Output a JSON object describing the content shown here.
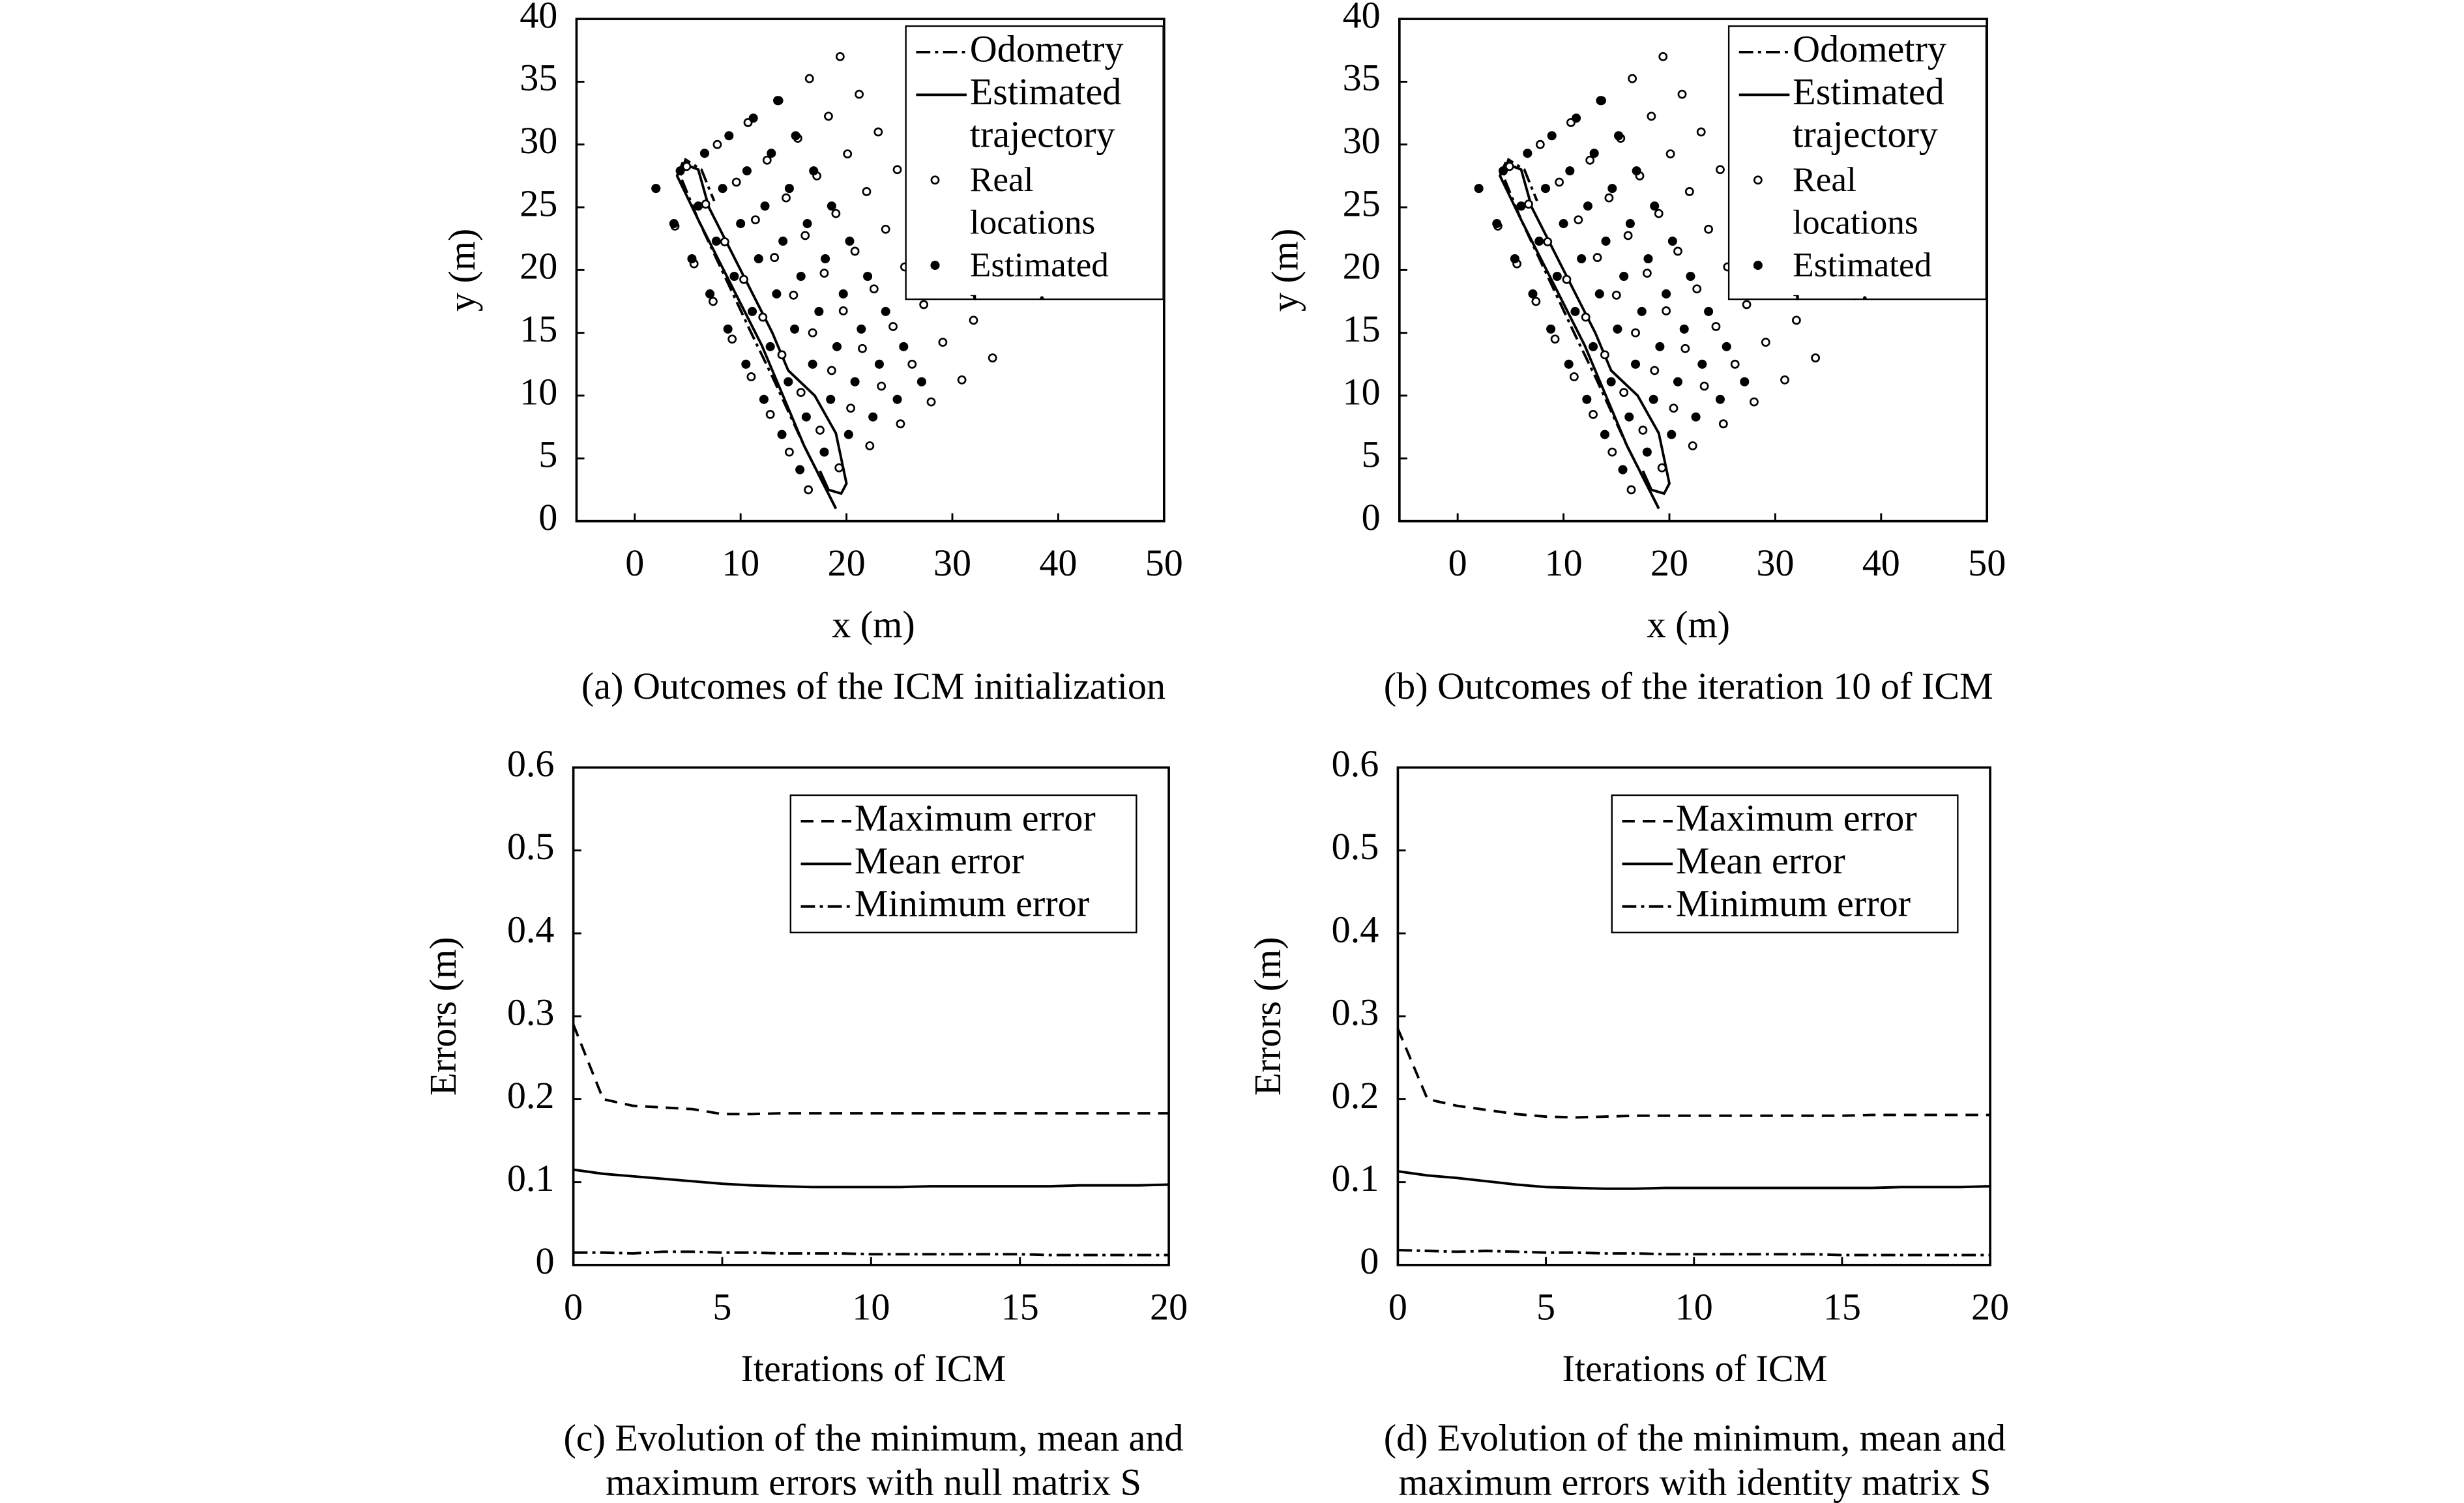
{
  "chart_data": [
    {
      "type": "scatter",
      "caption": [
        "(a) Outcomes of the ICM initialization"
      ],
      "xlabel": "x (m)",
      "ylabel": "y (m)",
      "xlim": [
        -5.5,
        50
      ],
      "xticks": [
        0,
        10,
        20,
        30,
        40,
        50
      ],
      "ylim": [
        0,
        40
      ],
      "yticks": [
        0,
        5,
        10,
        15,
        20,
        25,
        30,
        35,
        40
      ],
      "legend": "upper right",
      "series": [
        {
          "name": "Odometry",
          "mode": "line",
          "style": "dashdot",
          "color": "#000000",
          "x": [
            19,
            16,
            13,
            11,
            8.5,
            6,
            4.3,
            4.8,
            6.3,
            7.5
          ],
          "values": [
            1,
            6,
            11.5,
            15,
            19.5,
            24,
            27.5,
            28.8,
            28,
            25.5
          ]
        },
        {
          "name": "Estimated trajectory",
          "mode": "line",
          "style": "solid",
          "color": "#000000",
          "x": [
            19,
            16,
            13.5,
            12,
            9,
            6,
            4,
            4.5,
            6,
            7,
            10,
            13,
            14.5,
            17,
            19,
            20,
            19.5,
            18.3,
            17.5
          ],
          "values": [
            1,
            6,
            11,
            14,
            19,
            24,
            27.5,
            28.5,
            28,
            25,
            20,
            15,
            12,
            10,
            7,
            3,
            2.2,
            2.5,
            4
          ]
        },
        {
          "name": "Real locations",
          "mode": "markers",
          "marker": "open-circle",
          "color": "#000000",
          "x": [
            2,
            3.8,
            5.6,
            7.4,
            9.2,
            11,
            12.8,
            14.6,
            16.4,
            4.9,
            6.7,
            8.5,
            10.3,
            12.1,
            13.9,
            15.7,
            17.5,
            19.3,
            7.8,
            9.6,
            11.4,
            13.2,
            15,
            16.8,
            18.6,
            20.4,
            22.2,
            10.7,
            12.5,
            14.3,
            16.1,
            17.9,
            19.7,
            21.5,
            23.3,
            25.1,
            13.6,
            15.4,
            17.2,
            19,
            20.8,
            22.6,
            24.4,
            26.2,
            28,
            16.5,
            18.3,
            20.1,
            21.9,
            23.7,
            25.5,
            27.3,
            29.1,
            30.9,
            19.4,
            21.2,
            23,
            24.8,
            26.6,
            28.4,
            30.2,
            32,
            33.8
          ],
          "values": [
            26.5,
            23.5,
            20.5,
            17.5,
            14.5,
            11.5,
            8.5,
            5.5,
            2.5,
            28.25,
            25.25,
            22.25,
            19.25,
            16.25,
            13.25,
            10.25,
            7.25,
            4.25,
            30,
            27,
            24,
            21,
            18,
            15,
            12,
            9,
            6,
            31.75,
            28.75,
            25.75,
            22.75,
            19.75,
            16.75,
            13.75,
            10.75,
            7.75,
            33.5,
            30.5,
            27.5,
            24.5,
            21.5,
            18.5,
            15.5,
            12.5,
            9.5,
            35.25,
            32.25,
            29.25,
            26.25,
            23.25,
            20.25,
            17.25,
            14.25,
            11.25,
            37,
            34,
            31,
            28,
            25,
            22,
            19,
            16,
            13
          ]
        },
        {
          "name": "Estimated locations",
          "mode": "markers",
          "marker": "filled-circle",
          "color": "#000000",
          "x": [
            2,
            3.7,
            5.4,
            7.1,
            8.8,
            10.5,
            12.2,
            13.9,
            15.6,
            4.3,
            6,
            7.7,
            9.4,
            11.1,
            12.8,
            14.5,
            16.2,
            17.9,
            6.6,
            8.3,
            10,
            11.7,
            13.4,
            15.1,
            16.8,
            18.5,
            20.2,
            8.9,
            10.6,
            12.3,
            14,
            15.7,
            17.4,
            19.1,
            20.8,
            22.5,
            11.2,
            12.9,
            14.6,
            16.3,
            18,
            19.7,
            21.4,
            23.1,
            24.8,
            13.5,
            15.2,
            16.9,
            18.6,
            20.3,
            22,
            23.7,
            25.4,
            27.1
          ],
          "values": [
            26.5,
            23.7,
            20.9,
            18.1,
            15.3,
            12.5,
            9.7,
            6.9,
            4.1,
            27.9,
            25.1,
            22.3,
            19.5,
            16.7,
            13.9,
            11.1,
            8.3,
            5.5,
            29.3,
            26.5,
            23.7,
            20.9,
            18.1,
            15.3,
            12.5,
            9.7,
            6.9,
            30.7,
            27.9,
            25.1,
            22.3,
            19.5,
            16.7,
            13.9,
            11.1,
            8.3,
            32.1,
            29.3,
            26.5,
            23.7,
            20.9,
            18.1,
            15.3,
            12.5,
            9.7,
            33.5,
            30.7,
            27.9,
            25.1,
            22.3,
            19.5,
            16.7,
            13.9,
            11.1
          ]
        }
      ]
    },
    {
      "type": "scatter",
      "caption": [
        "(b) Outcomes of the iteration 10 of ICM"
      ],
      "xlabel": "x (m)",
      "ylabel": "y (m)",
      "xlim": [
        -5.5,
        50
      ],
      "xticks": [
        0,
        10,
        20,
        30,
        40,
        50
      ],
      "ylim": [
        0,
        40
      ],
      "yticks": [
        0,
        5,
        10,
        15,
        20,
        25,
        30,
        35,
        40
      ],
      "legend": "upper right",
      "series": [
        {
          "name": "Odometry",
          "mode": "line",
          "style": "dashdot",
          "color": "#000000",
          "x": [
            19,
            16,
            13,
            11,
            8.5,
            6,
            4.3,
            4.8,
            6.3,
            7.5
          ],
          "values": [
            1,
            6,
            11.5,
            15,
            19.5,
            24,
            27.5,
            28.8,
            28,
            25.5
          ]
        },
        {
          "name": "Estimated trajectory",
          "mode": "line",
          "style": "solid",
          "color": "#000000",
          "x": [
            19,
            16,
            13.5,
            12,
            9,
            6,
            4,
            4.5,
            6,
            7,
            10,
            13,
            14.5,
            17,
            19,
            20,
            19.5,
            18.3,
            17.5
          ],
          "values": [
            1,
            6,
            11,
            14,
            19,
            24,
            27.5,
            28.5,
            28,
            25,
            20,
            15,
            12,
            10,
            7,
            3,
            2.2,
            2.5,
            4
          ]
        },
        {
          "name": "Real locations",
          "mode": "markers",
          "marker": "open-circle",
          "color": "#000000",
          "x": [
            2,
            3.8,
            5.6,
            7.4,
            9.2,
            11,
            12.8,
            14.6,
            16.4,
            4.9,
            6.7,
            8.5,
            10.3,
            12.1,
            13.9,
            15.7,
            17.5,
            19.3,
            7.8,
            9.6,
            11.4,
            13.2,
            15,
            16.8,
            18.6,
            20.4,
            22.2,
            10.7,
            12.5,
            14.3,
            16.1,
            17.9,
            19.7,
            21.5,
            23.3,
            25.1,
            13.6,
            15.4,
            17.2,
            19,
            20.8,
            22.6,
            24.4,
            26.2,
            28,
            16.5,
            18.3,
            20.1,
            21.9,
            23.7,
            25.5,
            27.3,
            29.1,
            30.9,
            19.4,
            21.2,
            23,
            24.8,
            26.6,
            28.4,
            30.2,
            32,
            33.8
          ],
          "values": [
            26.5,
            23.5,
            20.5,
            17.5,
            14.5,
            11.5,
            8.5,
            5.5,
            2.5,
            28.25,
            25.25,
            22.25,
            19.25,
            16.25,
            13.25,
            10.25,
            7.25,
            4.25,
            30,
            27,
            24,
            21,
            18,
            15,
            12,
            9,
            6,
            31.75,
            28.75,
            25.75,
            22.75,
            19.75,
            16.75,
            13.75,
            10.75,
            7.75,
            33.5,
            30.5,
            27.5,
            24.5,
            21.5,
            18.5,
            15.5,
            12.5,
            9.5,
            35.25,
            32.25,
            29.25,
            26.25,
            23.25,
            20.25,
            17.25,
            14.25,
            11.25,
            37,
            34,
            31,
            28,
            25,
            22,
            19,
            16,
            13
          ]
        },
        {
          "name": "Estimated locations",
          "mode": "markers",
          "marker": "filled-circle",
          "color": "#000000",
          "x": [
            2,
            3.7,
            5.4,
            7.1,
            8.8,
            10.5,
            12.2,
            13.9,
            15.6,
            4.3,
            6,
            7.7,
            9.4,
            11.1,
            12.8,
            14.5,
            16.2,
            17.9,
            6.6,
            8.3,
            10,
            11.7,
            13.4,
            15.1,
            16.8,
            18.5,
            20.2,
            8.9,
            10.6,
            12.3,
            14,
            15.7,
            17.4,
            19.1,
            20.8,
            22.5,
            11.2,
            12.9,
            14.6,
            16.3,
            18,
            19.7,
            21.4,
            23.1,
            24.8,
            13.5,
            15.2,
            16.9,
            18.6,
            20.3,
            22,
            23.7,
            25.4,
            27.1
          ],
          "values": [
            26.5,
            23.7,
            20.9,
            18.1,
            15.3,
            12.5,
            9.7,
            6.9,
            4.1,
            27.9,
            25.1,
            22.3,
            19.5,
            16.7,
            13.9,
            11.1,
            8.3,
            5.5,
            29.3,
            26.5,
            23.7,
            20.9,
            18.1,
            15.3,
            12.5,
            9.7,
            6.9,
            30.7,
            27.9,
            25.1,
            22.3,
            19.5,
            16.7,
            13.9,
            11.1,
            8.3,
            32.1,
            29.3,
            26.5,
            23.7,
            20.9,
            18.1,
            15.3,
            12.5,
            9.7,
            33.5,
            30.7,
            27.9,
            25.1,
            22.3,
            19.5,
            16.7,
            13.9,
            11.1
          ]
        }
      ]
    },
    {
      "type": "line",
      "caption": [
        "(c) Evolution of the minimum, mean and",
        "maximum errors with null matrix S"
      ],
      "xlabel": "Iterations of ICM",
      "ylabel": "Errors (m)",
      "xlim": [
        0,
        20
      ],
      "xticks": [
        0,
        5,
        10,
        15,
        20
      ],
      "ylim": [
        0,
        0.6
      ],
      "yticks": [
        0,
        0.1,
        0.2,
        0.3,
        0.4,
        0.5,
        0.6
      ],
      "legend": "upper right",
      "x": [
        0,
        1,
        2,
        3,
        4,
        5,
        6,
        7,
        8,
        9,
        10,
        11,
        12,
        13,
        14,
        15,
        16,
        17,
        18,
        19,
        20
      ],
      "series": [
        {
          "name": "Maximum error",
          "style": "dashed",
          "color": "#000000",
          "values": [
            0.29,
            0.2,
            0.192,
            0.19,
            0.188,
            0.182,
            0.182,
            0.183,
            0.183,
            0.183,
            0.183,
            0.183,
            0.183,
            0.183,
            0.183,
            0.183,
            0.183,
            0.183,
            0.183,
            0.183,
            0.183
          ]
        },
        {
          "name": "Mean error",
          "style": "solid",
          "color": "#000000",
          "values": [
            0.115,
            0.11,
            0.107,
            0.104,
            0.101,
            0.098,
            0.096,
            0.095,
            0.094,
            0.094,
            0.094,
            0.094,
            0.095,
            0.095,
            0.095,
            0.095,
            0.095,
            0.096,
            0.096,
            0.096,
            0.097
          ]
        },
        {
          "name": "Minimum error",
          "style": "dashdot",
          "color": "#000000",
          "values": [
            0.015,
            0.015,
            0.014,
            0.016,
            0.016,
            0.015,
            0.015,
            0.014,
            0.014,
            0.014,
            0.013,
            0.013,
            0.013,
            0.013,
            0.013,
            0.013,
            0.012,
            0.012,
            0.012,
            0.012,
            0.012
          ]
        }
      ]
    },
    {
      "type": "line",
      "caption": [
        "(d) Evolution of the minimum, mean and",
        "maximum errors with identity matrix S"
      ],
      "xlabel": "Iterations of ICM",
      "ylabel": "Errors (m)",
      "xlim": [
        0,
        20
      ],
      "xticks": [
        0,
        5,
        10,
        15,
        20
      ],
      "ylim": [
        0,
        0.6
      ],
      "yticks": [
        0,
        0.1,
        0.2,
        0.3,
        0.4,
        0.5,
        0.6
      ],
      "legend": "upper right",
      "x": [
        0,
        1,
        2,
        3,
        4,
        5,
        6,
        7,
        8,
        9,
        10,
        11,
        12,
        13,
        14,
        15,
        16,
        17,
        18,
        19,
        20
      ],
      "series": [
        {
          "name": "Maximum error",
          "style": "dashed",
          "color": "#000000",
          "values": [
            0.285,
            0.2,
            0.192,
            0.187,
            0.182,
            0.179,
            0.178,
            0.179,
            0.18,
            0.18,
            0.18,
            0.18,
            0.18,
            0.18,
            0.18,
            0.18,
            0.181,
            0.181,
            0.181,
            0.181,
            0.181
          ]
        },
        {
          "name": "Mean error",
          "style": "solid",
          "color": "#000000",
          "values": [
            0.113,
            0.108,
            0.105,
            0.101,
            0.097,
            0.094,
            0.093,
            0.092,
            0.092,
            0.093,
            0.093,
            0.093,
            0.093,
            0.093,
            0.093,
            0.093,
            0.093,
            0.094,
            0.094,
            0.094,
            0.095
          ]
        },
        {
          "name": "Minimum error",
          "style": "dashdot",
          "color": "#000000",
          "values": [
            0.018,
            0.017,
            0.016,
            0.017,
            0.016,
            0.015,
            0.015,
            0.014,
            0.014,
            0.013,
            0.013,
            0.013,
            0.013,
            0.013,
            0.013,
            0.012,
            0.012,
            0.012,
            0.012,
            0.012,
            0.012
          ]
        }
      ]
    }
  ]
}
